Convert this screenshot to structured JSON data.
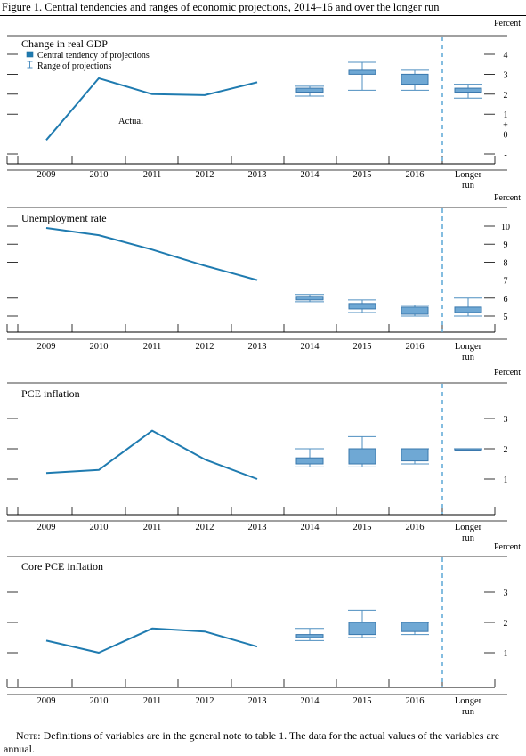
{
  "figure_title": "Figure 1. Central tendencies and ranges of economic projections, 2014–16 and over the longer run",
  "note": {
    "label": "Note:",
    "text": " Definitions of variables are in the general note to table 1. The data for the actual values of the variables are annual."
  },
  "legend": {
    "central_tendency": "Central tendency of projections",
    "range": "Range of projections"
  },
  "colors": {
    "line": "#1f7bb0",
    "box_fill": "#6fa8d4",
    "box_stroke": "#3a78ad",
    "range": "#4f8fc0",
    "divider": "#5ba7d6"
  },
  "chart_data": [
    {
      "type": "line",
      "title": "Change in real GDP",
      "unit": "Percent",
      "ylim": [
        -1,
        5
      ],
      "yticks": [
        "4",
        "3",
        "2",
        "1",
        "0",
        "-"
      ],
      "plus_sign": "+",
      "categories": [
        "2009",
        "2010",
        "2011",
        "2012",
        "2013",
        "2014",
        "2015",
        "2016",
        "Longer run"
      ],
      "actual": {
        "x": [
          "2009",
          "2010",
          "2011",
          "2012",
          "2013"
        ],
        "values": [
          -0.3,
          2.8,
          2.0,
          1.95,
          2.6
        ]
      },
      "annotation": "Actual",
      "projections": [
        {
          "x": "2014",
          "central": [
            2.1,
            2.3
          ],
          "range": [
            1.9,
            2.4
          ]
        },
        {
          "x": "2015",
          "central": [
            3.0,
            3.2
          ],
          "range": [
            2.2,
            3.6
          ]
        },
        {
          "x": "2016",
          "central": [
            2.5,
            3.0
          ],
          "range": [
            2.2,
            3.2
          ]
        },
        {
          "x": "Longer run",
          "central": [
            2.1,
            2.3
          ],
          "range": [
            1.8,
            2.5
          ]
        }
      ]
    },
    {
      "type": "line",
      "title": "Unemployment rate",
      "unit": "Percent",
      "ylim": [
        4,
        10.5
      ],
      "yticks": [
        "10",
        "9",
        "8",
        "7",
        "6",
        "5"
      ],
      "categories": [
        "2009",
        "2010",
        "2011",
        "2012",
        "2013",
        "2014",
        "2015",
        "2016",
        "Longer run"
      ],
      "actual": {
        "x": [
          "2009",
          "2010",
          "2011",
          "2012",
          "2013"
        ],
        "values": [
          9.9,
          9.5,
          8.7,
          7.8,
          7.0
        ]
      },
      "projections": [
        {
          "x": "2014",
          "central": [
            5.9,
            6.1
          ],
          "range": [
            5.8,
            6.2
          ]
        },
        {
          "x": "2015",
          "central": [
            5.4,
            5.7
          ],
          "range": [
            5.2,
            5.9
          ]
        },
        {
          "x": "2016",
          "central": [
            5.1,
            5.5
          ],
          "range": [
            5.0,
            5.6
          ]
        },
        {
          "x": "Longer run",
          "central": [
            5.2,
            5.5
          ],
          "range": [
            5.0,
            6.0
          ]
        }
      ]
    },
    {
      "type": "line",
      "title": "PCE inflation",
      "unit": "Percent",
      "ylim": [
        0,
        3.5
      ],
      "yticks": [
        "3",
        "2",
        "1"
      ],
      "categories": [
        "2009",
        "2010",
        "2011",
        "2012",
        "2013",
        "2014",
        "2015",
        "2016",
        "Longer run"
      ],
      "actual": {
        "x": [
          "2009",
          "2010",
          "2011",
          "2012",
          "2013"
        ],
        "values": [
          1.2,
          1.3,
          2.6,
          1.65,
          1.0
        ]
      },
      "projections": [
        {
          "x": "2014",
          "central": [
            1.5,
            1.7
          ],
          "range": [
            1.4,
            2.0
          ]
        },
        {
          "x": "2015",
          "central": [
            1.5,
            2.0
          ],
          "range": [
            1.4,
            2.4
          ]
        },
        {
          "x": "2016",
          "central": [
            1.6,
            2.0
          ],
          "range": [
            1.5,
            2.0
          ]
        },
        {
          "x": "Longer run",
          "central": [
            2.0,
            2.0
          ],
          "range": [
            2.0,
            2.0
          ]
        }
      ]
    },
    {
      "type": "line",
      "title": "Core PCE inflation",
      "unit": "Percent",
      "ylim": [
        0,
        3.5
      ],
      "yticks": [
        "3",
        "2",
        "1"
      ],
      "categories": [
        "2009",
        "2010",
        "2011",
        "2012",
        "2013",
        "2014",
        "2015",
        "2016",
        "Longer run"
      ],
      "actual": {
        "x": [
          "2009",
          "2010",
          "2011",
          "2012",
          "2013"
        ],
        "values": [
          1.4,
          1.0,
          1.8,
          1.7,
          1.2
        ]
      },
      "projections": [
        {
          "x": "2014",
          "central": [
            1.5,
            1.6
          ],
          "range": [
            1.4,
            1.8
          ]
        },
        {
          "x": "2015",
          "central": [
            1.6,
            2.0
          ],
          "range": [
            1.5,
            2.4
          ]
        },
        {
          "x": "2016",
          "central": [
            1.7,
            2.0
          ],
          "range": [
            1.6,
            2.0
          ]
        }
      ]
    }
  ]
}
